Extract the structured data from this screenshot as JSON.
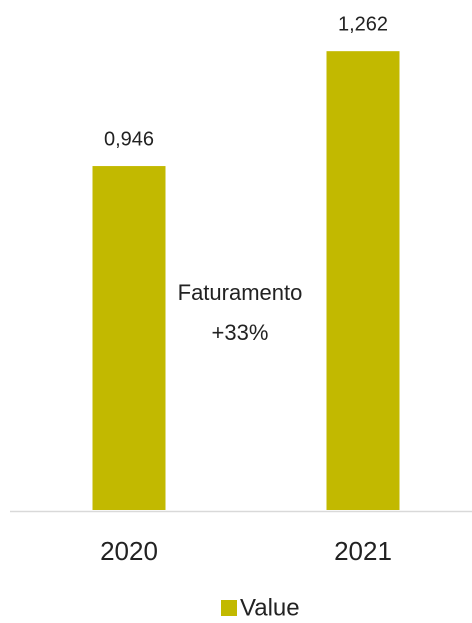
{
  "chart_data": {
    "type": "bar",
    "categories": [
      "2020",
      "2021"
    ],
    "series": [
      {
        "name": "Value",
        "color": "#c2b900",
        "values": [
          0.946,
          1.262
        ],
        "value_labels": [
          "0,946",
          "1,262"
        ]
      }
    ],
    "ylim": [
      0,
      1.4
    ],
    "annotation": [
      "Faturamento",
      "+33%"
    ],
    "legend": "bottom"
  }
}
